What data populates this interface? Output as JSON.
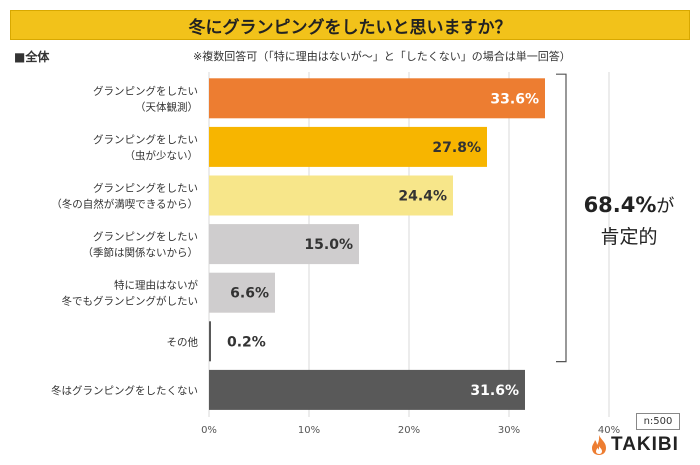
{
  "title": "冬にグランピングをしたいと思いますか？",
  "group_label": "■全体",
  "note": "※複数回答可（「特に理由はないが〜」と「したくない」の場合は単一回答）",
  "chart_data": {
    "type": "bar",
    "orientation": "horizontal",
    "categories": [
      [
        "グランピングをしたい",
        "（天体観測）"
      ],
      [
        "グランピングをしたい",
        "（虫が少ない）"
      ],
      [
        "グランピングをしたい",
        "（冬の自然が満喫できるから）"
      ],
      [
        "グランピングをしたい",
        "（季節は関係ないから）"
      ],
      [
        "特に理由はないが",
        "冬でもグランピングがしたい"
      ],
      [
        "その他"
      ],
      [
        "冬はグランピングをしたくない"
      ]
    ],
    "values": [
      33.6,
      27.8,
      24.4,
      15.0,
      6.6,
      0.2,
      31.6
    ],
    "value_labels": [
      "33.6%",
      "27.8%",
      "24.4%",
      "15.0%",
      "6.6%",
      "0.2%",
      "31.6%"
    ],
    "colors": [
      "#ed7d31",
      "#f7b500",
      "#f7e68a",
      "#cfcdce",
      "#cfcdce",
      "#595959",
      "#595959"
    ],
    "label_colors": [
      "#ffffff",
      "#333333",
      "#333333",
      "#333333",
      "#333333",
      "#333333",
      "#ffffff"
    ],
    "xlim": [
      0,
      40
    ],
    "xticks": [
      0,
      10,
      20,
      30,
      40
    ],
    "xtick_labels": [
      "0%",
      "10%",
      "20%",
      "30%",
      "40%"
    ],
    "grid": true
  },
  "brace": {
    "pct": "68.4%",
    "ga": "が",
    "label": "肯定的"
  },
  "sample_size": "n:500",
  "logo": {
    "text": "TAKIBI",
    "flame_color": "#ed7d31"
  }
}
